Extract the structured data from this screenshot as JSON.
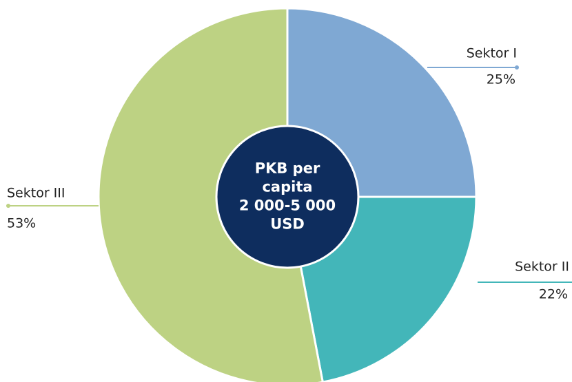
{
  "chart_data": {
    "type": "pie",
    "categories": [
      "Sektor I",
      "Sektor II",
      "Sektor III"
    ],
    "values": [
      25,
      22,
      53
    ],
    "value_labels": [
      "25%",
      "22%",
      "53%"
    ],
    "colors": [
      "#7fa8d3",
      "#43b6b9",
      "#bdd283"
    ],
    "center_label": [
      "PKB per",
      "capita",
      "2 000-5 000",
      "USD"
    ],
    "center_color": "#0e2d5e"
  }
}
